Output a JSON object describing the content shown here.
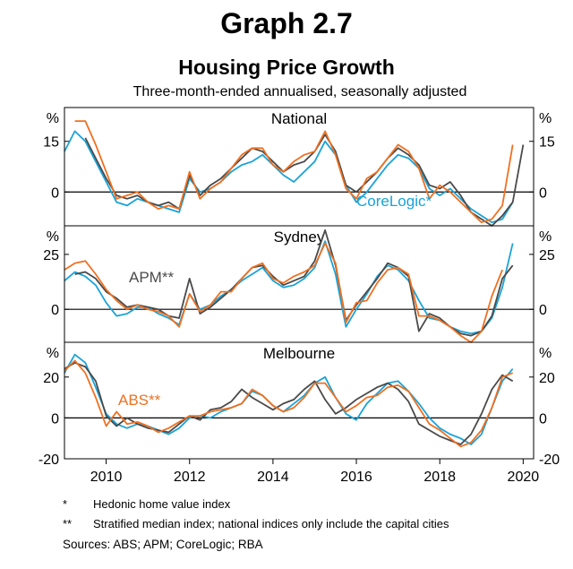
{
  "header": {
    "graph_label": "Graph 2.7",
    "title": "Housing Price Growth",
    "subtitle": "Three-month-ended annualised, seasonally adjusted"
  },
  "footnotes": [
    {
      "mark": "*",
      "text": "Hedonic home value index"
    },
    {
      "mark": "**",
      "text": "Stratified median index; national indices only include the capital cities"
    }
  ],
  "sources": "Sources: ABS; APM; CoreLogic; RBA",
  "chart_data": {
    "type": "line",
    "unit_label": "%",
    "x_ticks": [
      "2010",
      "2012",
      "2014",
      "2016",
      "2018",
      "2020"
    ],
    "x_tick_values": [
      2010,
      2012,
      2014,
      2016,
      2018,
      2020
    ],
    "x_range": [
      2009,
      2020.25
    ],
    "colors": {
      "CoreLogic": "#1aa3d8",
      "APM": "#4a4a4a",
      "ABS": "#f07020"
    },
    "panels": [
      {
        "title": "National",
        "ylim": [
          -10,
          25
        ],
        "yticks": [
          15,
          0
        ],
        "tick_labels": [
          "15",
          "0"
        ],
        "annotation": {
          "text": "CoreLogic*",
          "series": "CoreLogic"
        },
        "series": [
          {
            "name": "CoreLogic",
            "x": [
              2009.0,
              2009.25,
              2009.5,
              2009.75,
              2010.0,
              2010.25,
              2010.5,
              2010.75,
              2011.0,
              2011.25,
              2011.5,
              2011.75,
              2012.0,
              2012.25,
              2012.5,
              2012.75,
              2013.0,
              2013.25,
              2013.5,
              2013.75,
              2014.0,
              2014.25,
              2014.5,
              2014.75,
              2015.0,
              2015.25,
              2015.5,
              2015.75,
              2016.0,
              2016.25,
              2016.5,
              2016.75,
              2017.0,
              2017.25,
              2017.5,
              2017.75,
              2018.0,
              2018.25,
              2018.5,
              2018.75,
              2019.0,
              2019.25,
              2019.5,
              2019.75
            ],
            "y": [
              12,
              18,
              15,
              9,
              3,
              -3,
              -4,
              -2,
              -3,
              -4,
              -5,
              -6,
              4,
              0,
              1,
              3,
              6,
              8,
              9,
              11,
              8,
              5,
              3,
              6,
              9,
              15,
              11,
              2,
              -3,
              0,
              4,
              8,
              11,
              10,
              7,
              1,
              -1,
              1,
              -2,
              -5,
              -7,
              -9,
              -8,
              -3
            ]
          },
          {
            "name": "APM",
            "x": [
              2009.5,
              2009.75,
              2010.0,
              2010.25,
              2010.5,
              2010.75,
              2011.0,
              2011.25,
              2011.5,
              2011.75,
              2012.0,
              2012.25,
              2012.5,
              2012.75,
              2013.0,
              2013.25,
              2013.5,
              2013.75,
              2014.0,
              2014.25,
              2014.5,
              2014.75,
              2015.0,
              2015.25,
              2015.5,
              2015.75,
              2016.0,
              2016.25,
              2016.5,
              2016.75,
              2017.0,
              2017.25,
              2017.5,
              2017.75,
              2018.0,
              2018.25,
              2018.5,
              2018.75,
              2019.0,
              2019.25,
              2019.5,
              2019.75,
              2020.0
            ],
            "y": [
              16,
              10,
              4,
              -1,
              -2,
              -1,
              -3,
              -4,
              -3,
              -5,
              5,
              -1,
              2,
              4,
              7,
              10,
              13,
              12,
              9,
              6,
              8,
              9,
              12,
              17,
              12,
              2,
              0,
              3,
              6,
              10,
              13,
              11,
              8,
              2,
              1,
              3,
              -1,
              -6,
              -8,
              -10,
              -7,
              -3,
              14
            ]
          },
          {
            "name": "ABS",
            "x": [
              2009.25,
              2009.5,
              2009.75,
              2010.0,
              2010.25,
              2010.5,
              2010.75,
              2011.0,
              2011.25,
              2011.5,
              2011.75,
              2012.0,
              2012.25,
              2012.5,
              2012.75,
              2013.0,
              2013.25,
              2013.5,
              2013.75,
              2014.0,
              2014.25,
              2014.5,
              2014.75,
              2015.0,
              2015.25,
              2015.5,
              2015.75,
              2016.0,
              2016.25,
              2016.5,
              2016.75,
              2017.0,
              2017.25,
              2017.5,
              2017.75,
              2018.0,
              2018.25,
              2018.5,
              2018.75,
              2019.0,
              2019.25,
              2019.5,
              2019.75
            ],
            "y": [
              21,
              21,
              14,
              6,
              -2,
              -1,
              0,
              -3,
              -5,
              -4,
              -5,
              6,
              -2,
              1,
              3,
              7,
              11,
              13,
              13,
              8,
              6,
              9,
              11,
              12,
              18,
              11,
              1,
              -2,
              4,
              6,
              10,
              14,
              12,
              7,
              -2,
              2,
              0,
              -3,
              -6,
              -9,
              -8,
              -4,
              14
            ]
          }
        ]
      },
      {
        "title": "Sydney",
        "ylim": [
          -15,
          38
        ],
        "yticks": [
          25,
          0
        ],
        "tick_labels": [
          "25",
          "0"
        ],
        "annotation": {
          "text": "APM**",
          "series": "APM"
        },
        "series": [
          {
            "name": "CoreLogic",
            "x": [
              2009.0,
              2009.25,
              2009.5,
              2009.75,
              2010.0,
              2010.25,
              2010.5,
              2010.75,
              2011.0,
              2011.25,
              2011.5,
              2011.75,
              2012.0,
              2012.25,
              2012.5,
              2012.75,
              2013.0,
              2013.25,
              2013.5,
              2013.75,
              2014.0,
              2014.25,
              2014.5,
              2014.75,
              2015.0,
              2015.25,
              2015.5,
              2015.75,
              2016.0,
              2016.25,
              2016.5,
              2016.75,
              2017.0,
              2017.25,
              2017.5,
              2017.75,
              2018.0,
              2018.25,
              2018.5,
              2018.75,
              2019.0,
              2019.25,
              2019.5,
              2019.75
            ],
            "y": [
              13,
              17,
              15,
              11,
              3,
              -3,
              -2,
              1,
              1,
              -2,
              -4,
              -7,
              7,
              0,
              2,
              6,
              9,
              13,
              16,
              19,
              13,
              10,
              11,
              14,
              19,
              31,
              16,
              -8,
              0,
              7,
              15,
              20,
              18,
              13,
              4,
              -4,
              -5,
              -8,
              -10,
              -11,
              -10,
              -4,
              10,
              30
            ]
          },
          {
            "name": "APM",
            "x": [
              2009.25,
              2009.5,
              2009.75,
              2010.0,
              2010.25,
              2010.5,
              2010.75,
              2011.0,
              2011.25,
              2011.5,
              2011.75,
              2012.0,
              2012.25,
              2012.5,
              2012.75,
              2013.0,
              2013.25,
              2013.5,
              2013.75,
              2014.0,
              2014.25,
              2014.5,
              2014.75,
              2015.0,
              2015.25,
              2015.5,
              2015.75,
              2016.0,
              2016.25,
              2016.5,
              2016.75,
              2017.0,
              2017.25,
              2017.5,
              2017.75,
              2018.0,
              2018.25,
              2018.5,
              2018.75,
              2019.0,
              2019.25,
              2019.5,
              2019.75
            ],
            "y": [
              16,
              17,
              14,
              8,
              5,
              1,
              2,
              1,
              0,
              -3,
              -4,
              14,
              -2,
              1,
              5,
              9,
              14,
              19,
              20,
              15,
              11,
              13,
              15,
              22,
              36,
              20,
              -5,
              2,
              8,
              14,
              21,
              19,
              15,
              -10,
              -2,
              -4,
              -8,
              -11,
              -12,
              -10,
              -3,
              14,
              20
            ]
          },
          {
            "name": "ABS",
            "x": [
              2009.0,
              2009.25,
              2009.5,
              2009.75,
              2010.0,
              2010.25,
              2010.5,
              2010.75,
              2011.0,
              2011.25,
              2011.5,
              2011.75,
              2012.0,
              2012.25,
              2012.5,
              2012.75,
              2013.0,
              2013.25,
              2013.5,
              2013.75,
              2014.0,
              2014.25,
              2014.5,
              2014.75,
              2015.0,
              2015.25,
              2015.5,
              2015.75,
              2016.0,
              2016.25,
              2016.5,
              2016.75,
              2017.0,
              2017.25,
              2017.5,
              2017.75,
              2018.0,
              2018.25,
              2018.5,
              2018.75,
              2019.0,
              2019.25,
              2019.5
            ],
            "y": [
              18,
              21,
              22,
              16,
              9,
              4,
              0,
              2,
              0,
              -1,
              -3,
              -8,
              7,
              -1,
              2,
              8,
              8,
              14,
              19,
              21,
              14,
              12,
              15,
              17,
              20,
              30,
              21,
              -6,
              3,
              4,
              12,
              18,
              19,
              16,
              -3,
              -3,
              -5,
              -8,
              -12,
              -15,
              -10,
              6,
              18
            ]
          }
        ]
      },
      {
        "title": "Melbourne",
        "ylim": [
          -20,
          37
        ],
        "yticks": [
          20,
          0,
          -20
        ],
        "tick_labels": [
          "20",
          "0",
          "-20"
        ],
        "annotation": {
          "text": "ABS**",
          "series": "ABS"
        },
        "series": [
          {
            "name": "CoreLogic",
            "x": [
              2009.0,
              2009.25,
              2009.5,
              2009.75,
              2010.0,
              2010.25,
              2010.5,
              2010.75,
              2011.0,
              2011.25,
              2011.5,
              2011.75,
              2012.0,
              2012.25,
              2012.5,
              2012.75,
              2013.0,
              2013.25,
              2013.5,
              2013.75,
              2014.0,
              2014.25,
              2014.5,
              2014.75,
              2015.0,
              2015.25,
              2015.5,
              2015.75,
              2016.0,
              2016.25,
              2016.5,
              2016.75,
              2017.0,
              2017.25,
              2017.5,
              2017.75,
              2018.0,
              2018.25,
              2018.5,
              2018.75,
              2019.0,
              2019.25,
              2019.5,
              2019.75
            ],
            "y": [
              22,
              31,
              27,
              15,
              2,
              -3,
              -5,
              -3,
              -4,
              -6,
              -8,
              -5,
              0,
              1,
              0,
              3,
              5,
              7,
              13,
              11,
              6,
              3,
              7,
              11,
              17,
              20,
              10,
              2,
              -1,
              7,
              12,
              17,
              18,
              13,
              7,
              0,
              -5,
              -8,
              -10,
              -13,
              -8,
              5,
              18,
              24
            ]
          },
          {
            "name": "APM",
            "x": [
              2009.0,
              2009.25,
              2009.5,
              2009.75,
              2010.0,
              2010.25,
              2010.5,
              2010.75,
              2011.0,
              2011.25,
              2011.5,
              2011.75,
              2012.0,
              2012.25,
              2012.5,
              2012.75,
              2013.0,
              2013.25,
              2013.5,
              2013.75,
              2014.0,
              2014.25,
              2014.5,
              2014.75,
              2015.0,
              2015.25,
              2015.5,
              2015.75,
              2016.0,
              2016.25,
              2016.5,
              2016.75,
              2017.0,
              2017.25,
              2017.5,
              2017.75,
              2018.0,
              2018.25,
              2018.5,
              2018.75,
              2019.0,
              2019.25,
              2019.5,
              2019.75
            ],
            "y": [
              24,
              27,
              25,
              18,
              1,
              -4,
              0,
              -3,
              -5,
              -6,
              -7,
              -3,
              1,
              -1,
              4,
              5,
              8,
              14,
              10,
              7,
              4,
              7,
              9,
              14,
              18,
              9,
              2,
              5,
              9,
              12,
              15,
              17,
              14,
              8,
              -3,
              -6,
              -9,
              -11,
              -13,
              -8,
              2,
              14,
              21,
              18
            ]
          },
          {
            "name": "ABS",
            "x": [
              2009.0,
              2009.25,
              2009.5,
              2009.75,
              2010.0,
              2010.25,
              2010.5,
              2010.75,
              2011.0,
              2011.25,
              2011.5,
              2011.75,
              2012.0,
              2012.25,
              2012.5,
              2012.75,
              2013.0,
              2013.25,
              2013.5,
              2013.75,
              2014.0,
              2014.25,
              2014.5,
              2014.75,
              2015.0,
              2015.25,
              2015.5,
              2015.75,
              2016.0,
              2016.25,
              2016.5,
              2016.75,
              2017.0,
              2017.25,
              2017.5,
              2017.75,
              2018.0,
              2018.25,
              2018.5,
              2018.75,
              2019.0,
              2019.25,
              2019.5,
              2019.75
            ],
            "y": [
              23,
              28,
              22,
              10,
              -4,
              3,
              -3,
              -2,
              -4,
              -7,
              -5,
              -2,
              1,
              1,
              3,
              4,
              5,
              7,
              14,
              11,
              6,
              3,
              5,
              10,
              17,
              17,
              10,
              3,
              6,
              10,
              11,
              15,
              16,
              13,
              5,
              -3,
              -6,
              -10,
              -14,
              -12,
              -6,
              5,
              20,
              22
            ]
          }
        ]
      }
    ]
  }
}
